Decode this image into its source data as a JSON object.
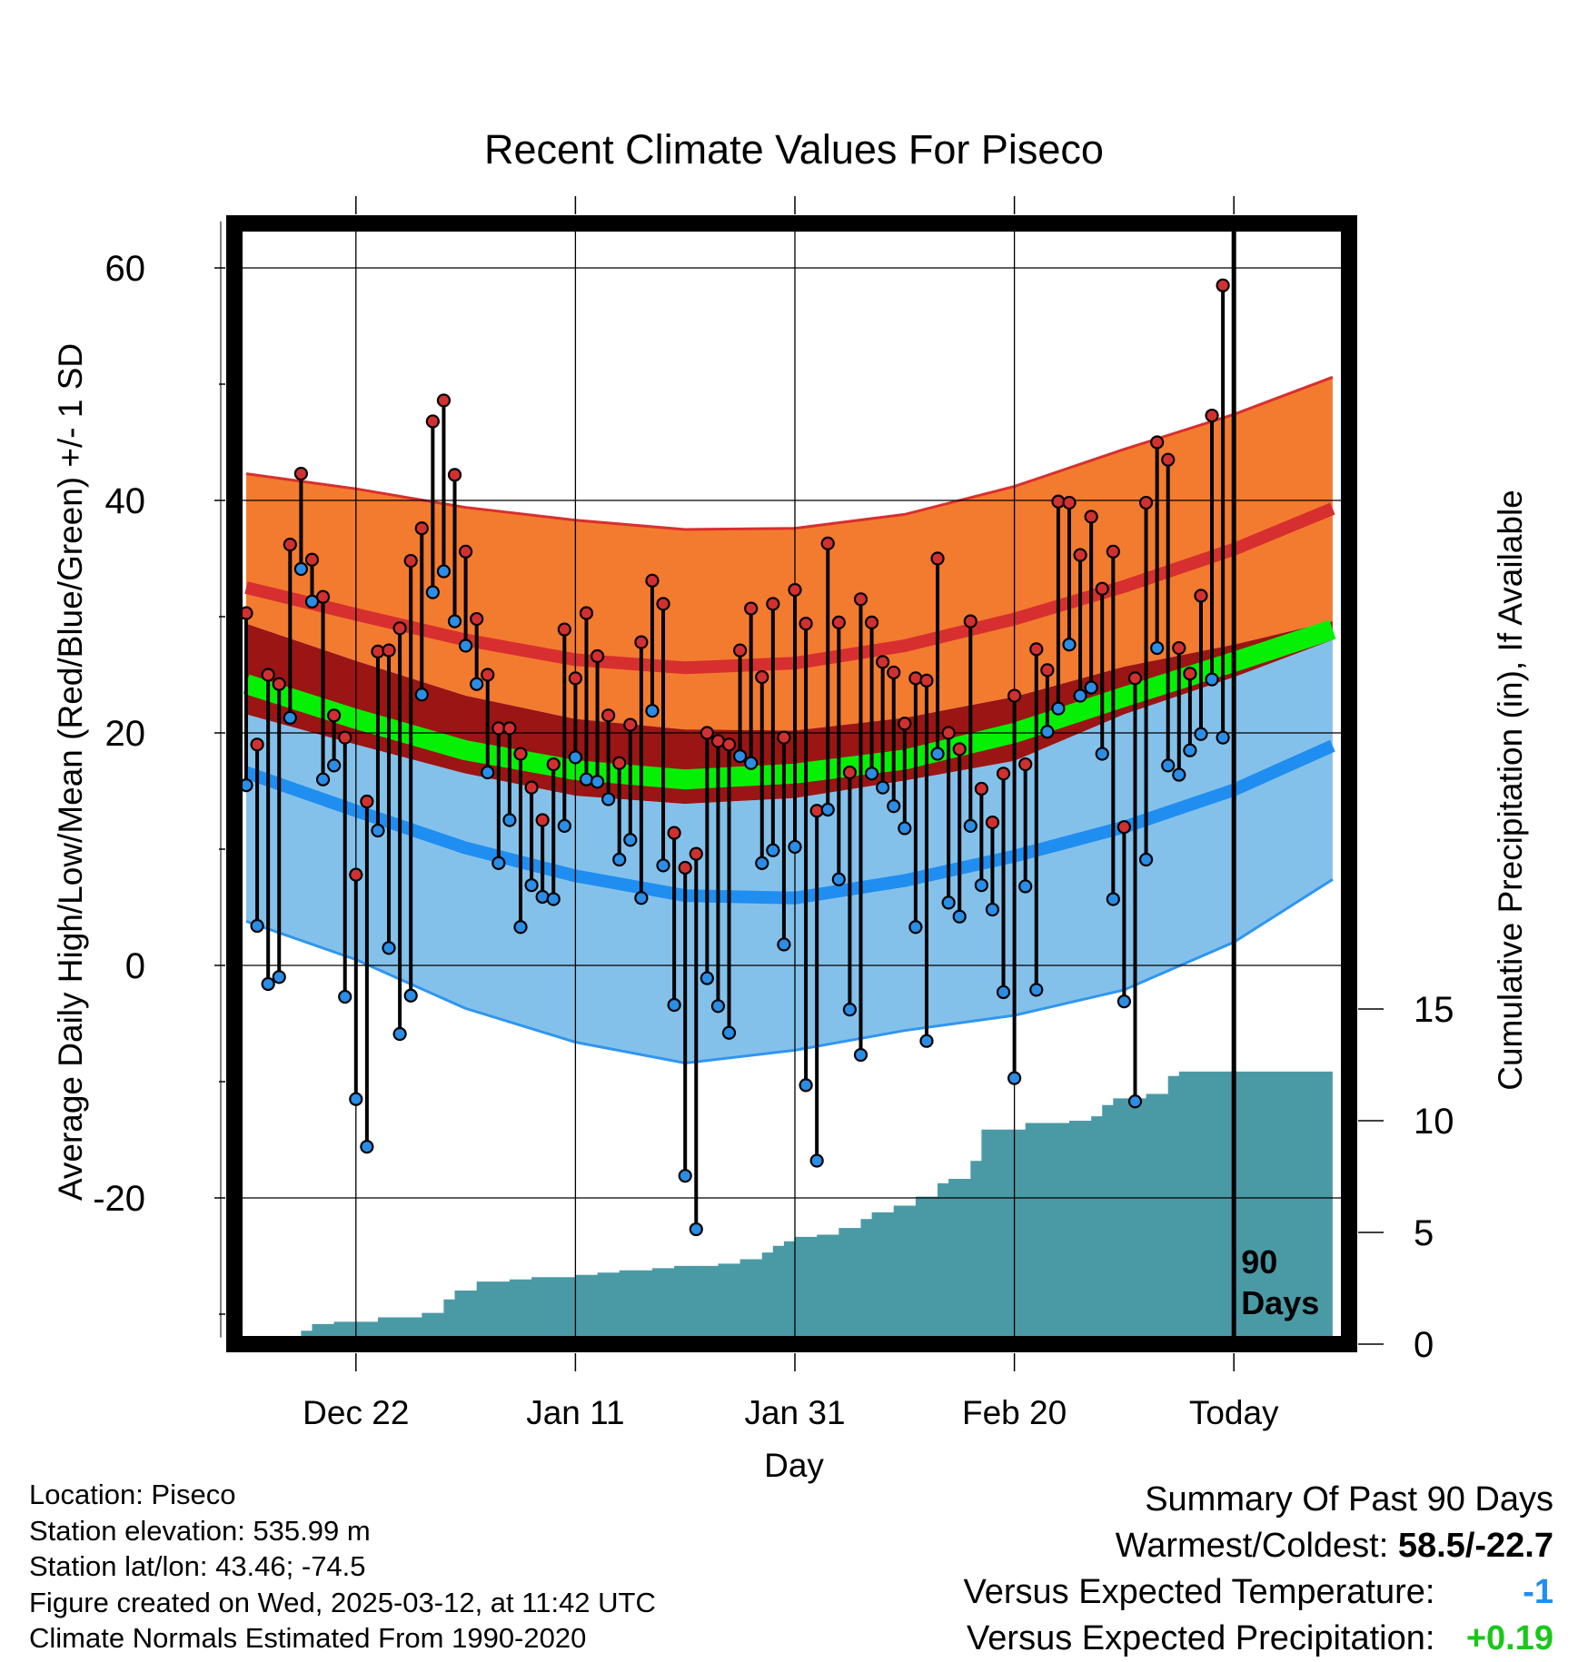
{
  "chart_data": {
    "type": "line",
    "title": "Recent Climate Values For Piseco",
    "xlabel": "Day",
    "ylabel": "Average Daily High/Low/Mean (Red/Blue/Green) +/- 1 SD",
    "y2label": "Cumulative Precipitation (in), If Available",
    "x_tick_labels": [
      "Dec 22",
      "Jan 11",
      "Jan 31",
      "Feb 20",
      "Today"
    ],
    "x_tick_days": [
      -80,
      -60,
      -40,
      -20,
      0
    ],
    "x_range": [
      -90,
      9
    ],
    "y_ticks": [
      -20,
      0,
      20,
      40,
      60
    ],
    "ylim": [
      -32,
      64
    ],
    "y2_ticks": [
      0,
      5,
      10,
      15
    ],
    "y2lim": [
      0,
      56
    ],
    "window_label": "90\nDays",
    "colors": {
      "high_band": "#f37b2f",
      "high_normal": "#d72f2f",
      "high_band_edge": "#d92f2f",
      "overlap": "#9b1515",
      "low_band": "#84c1ea",
      "low_normal": "#1f8ef0",
      "low_band_edge": "#2f96f0",
      "mean_normal": "#06f006",
      "precip": "#4a9aa6",
      "high_marker": "#d23030",
      "low_marker": "#2a8de6"
    },
    "normals": {
      "days": [
        -90,
        -80,
        -70,
        -60,
        -50,
        -40,
        -30,
        -20,
        -10,
        0,
        9
      ],
      "high_plus_sd": [
        42.3,
        41.0,
        39.4,
        38.3,
        37.5,
        37.6,
        38.8,
        41.2,
        44.4,
        47.4,
        50.6
      ],
      "high_mean": [
        32.5,
        30.2,
        28.0,
        26.3,
        25.6,
        26.0,
        27.5,
        29.8,
        32.6,
        35.8,
        39.3
      ],
      "high_minus_sd": [
        29.4,
        26.2,
        23.2,
        21.2,
        20.3,
        20.2,
        21.3,
        23.1,
        25.7,
        27.6,
        29.6
      ],
      "mean_normal": [
        24.2,
        21.2,
        18.5,
        16.8,
        16.0,
        16.5,
        17.7,
        20.0,
        23.1,
        26.1,
        28.9
      ],
      "low_plus_sd": [
        21.6,
        19.0,
        16.5,
        14.6,
        13.9,
        14.4,
        15.9,
        17.6,
        21.6,
        24.8,
        28.0
      ],
      "low_mean": [
        16.6,
        13.3,
        10.1,
        7.7,
        6.0,
        5.8,
        7.3,
        9.4,
        11.9,
        15.1,
        18.9
      ],
      "low_minus_sd": [
        3.8,
        0.5,
        -3.7,
        -6.6,
        -8.4,
        -7.3,
        -5.6,
        -4.3,
        -2.1,
        2.0,
        7.4
      ]
    },
    "series": [
      {
        "name": "High",
        "x": [
          -90,
          -89,
          -88,
          -87,
          -86,
          -85,
          -84,
          -83,
          -82,
          -81,
          -80,
          -79,
          -78,
          -77,
          -76,
          -75,
          -74,
          -73,
          -72,
          -71,
          -70,
          -69,
          -68,
          -67,
          -66,
          -65,
          -64,
          -63,
          -62,
          -61,
          -60,
          -59,
          -58,
          -57,
          -56,
          -55,
          -54,
          -53,
          -52,
          -51,
          -50,
          -49,
          -48,
          -47,
          -46,
          -45,
          -44,
          -43,
          -42,
          -41,
          -40,
          -39,
          -38,
          -37,
          -36,
          -35,
          -34,
          -33,
          -32,
          -31,
          -30,
          -29,
          -28,
          -27,
          -26,
          -25,
          -24,
          -23,
          -22,
          -21,
          -20,
          -19,
          -18,
          -17,
          -16,
          -15,
          -14,
          -13,
          -12,
          -11,
          -10,
          -9,
          -8,
          -7,
          -6,
          -5,
          -4,
          -3,
          -2,
          -1
        ],
        "values": [
          30.3,
          19.0,
          25.0,
          24.2,
          36.2,
          42.3,
          34.9,
          31.7,
          21.5,
          19.6,
          7.8,
          14.1,
          27.0,
          27.1,
          29.0,
          34.8,
          37.6,
          46.8,
          48.6,
          42.2,
          35.6,
          29.8,
          25.0,
          20.4,
          20.4,
          18.2,
          15.3,
          12.5,
          17.3,
          28.9,
          24.7,
          30.3,
          26.6,
          21.5,
          17.4,
          20.7,
          27.8,
          33.1,
          31.1,
          11.4,
          8.4,
          9.6,
          20.0,
          19.3,
          19.0,
          27.1,
          30.7,
          24.8,
          31.1,
          19.6,
          32.3,
          29.4,
          13.3,
          36.3,
          29.5,
          16.6,
          31.5,
          29.5,
          26.1,
          25.2,
          20.8,
          24.7,
          24.5,
          35.0,
          20.0,
          18.6,
          29.6,
          15.2,
          12.3,
          16.5,
          23.2,
          17.3,
          27.2,
          25.4,
          39.9,
          39.8,
          35.3,
          38.6,
          32.4,
          35.6,
          11.9,
          24.7,
          39.8,
          45.0,
          43.5,
          27.3,
          25.1,
          31.8,
          47.3,
          58.5
        ]
      },
      {
        "name": "Low",
        "x": [
          -90,
          -89,
          -88,
          -87,
          -86,
          -85,
          -84,
          -83,
          -82,
          -81,
          -80,
          -79,
          -78,
          -77,
          -76,
          -75,
          -74,
          -73,
          -72,
          -71,
          -70,
          -69,
          -68,
          -67,
          -66,
          -65,
          -64,
          -63,
          -62,
          -61,
          -60,
          -59,
          -58,
          -57,
          -56,
          -55,
          -54,
          -53,
          -52,
          -51,
          -50,
          -49,
          -48,
          -47,
          -46,
          -45,
          -44,
          -43,
          -42,
          -41,
          -40,
          -39,
          -38,
          -37,
          -36,
          -35,
          -34,
          -33,
          -32,
          -31,
          -30,
          -29,
          -28,
          -27,
          -26,
          -25,
          -24,
          -23,
          -22,
          -21,
          -20,
          -19,
          -18,
          -17,
          -16,
          -15,
          -14,
          -13,
          -12,
          -11,
          -10,
          -9,
          -8,
          -7,
          -6,
          -5,
          -4,
          -3,
          -2,
          -1
        ],
        "values": [
          15.5,
          3.4,
          -1.6,
          -1.0,
          21.3,
          34.1,
          31.3,
          16.0,
          17.2,
          -2.7,
          -11.5,
          -15.6,
          11.6,
          1.5,
          -5.9,
          -2.6,
          23.3,
          32.1,
          33.9,
          29.6,
          27.5,
          24.2,
          16.6,
          8.8,
          12.5,
          3.3,
          6.9,
          5.9,
          5.7,
          12.0,
          17.9,
          16.0,
          15.8,
          14.3,
          9.1,
          10.8,
          5.8,
          21.9,
          8.6,
          -3.4,
          -18.1,
          -22.7,
          -1.1,
          -3.5,
          -5.8,
          18.0,
          17.4,
          8.8,
          9.9,
          1.8,
          10.2,
          -10.3,
          -16.8,
          13.4,
          7.4,
          -3.8,
          -7.7,
          16.5,
          15.3,
          13.7,
          11.8,
          3.3,
          -6.5,
          18.2,
          5.4,
          4.2,
          12.0,
          6.9,
          4.8,
          -2.3,
          -9.7,
          6.8,
          -2.1,
          20.1,
          22.1,
          27.6,
          23.2,
          23.9,
          18.2,
          5.7,
          -3.1,
          -11.7,
          9.1,
          27.3,
          17.2,
          16.4,
          18.5,
          19.9,
          24.6,
          19.6
        ]
      },
      {
        "name": "Precipitation",
        "x": [
          -86,
          -85,
          -84,
          -82,
          -80,
          -78,
          -74,
          -72,
          -71,
          -70,
          -69,
          -66,
          -64,
          -61,
          -60,
          -58,
          -56,
          -54,
          -53,
          -51,
          -47,
          -45,
          -44,
          -43,
          -42,
          -41,
          -40,
          -38,
          -36,
          -34,
          -33,
          -31,
          -29,
          -28,
          -27,
          -26,
          -24,
          -23,
          -22,
          -19,
          -17,
          -15,
          -13,
          -12,
          -11,
          -8,
          -6,
          -5,
          9
        ],
        "values": [
          0,
          0.6,
          0.9,
          1.0,
          1.0,
          1.2,
          1.4,
          2.0,
          2.4,
          2.4,
          2.8,
          2.9,
          3.0,
          3.0,
          3.1,
          3.2,
          3.3,
          3.3,
          3.4,
          3.5,
          3.6,
          3.8,
          3.8,
          4.1,
          4.4,
          4.6,
          4.8,
          4.9,
          5.2,
          5.6,
          5.9,
          6.2,
          6.6,
          6.6,
          7.2,
          7.4,
          8.2,
          9.6,
          9.6,
          9.9,
          9.9,
          10.0,
          10.2,
          10.7,
          11.0,
          11.2,
          12.0,
          12.2,
          12.2
        ]
      }
    ]
  },
  "footer": {
    "location": "Location: Piseco",
    "elevation": "Station elevation: 535.99 m",
    "latlon": "Station lat/lon: 43.46; -74.5",
    "created": "Figure created on Wed, 2025-03-12, at 11:42 UTC",
    "normals": "Climate Normals Estimated From 1990-2020"
  },
  "summary": {
    "title": "Summary Of Past 90 Days",
    "warm_cold_label": "Warmest/Coldest: ",
    "warm_cold_value": "58.5/-22.7",
    "temp_label": "Versus Expected Temperature:",
    "temp_value": "-1",
    "temp_color": "#1f8ef0",
    "precip_label": "Versus Expected Precipitation:",
    "precip_value": "+0.19",
    "precip_color": "#19c819"
  }
}
